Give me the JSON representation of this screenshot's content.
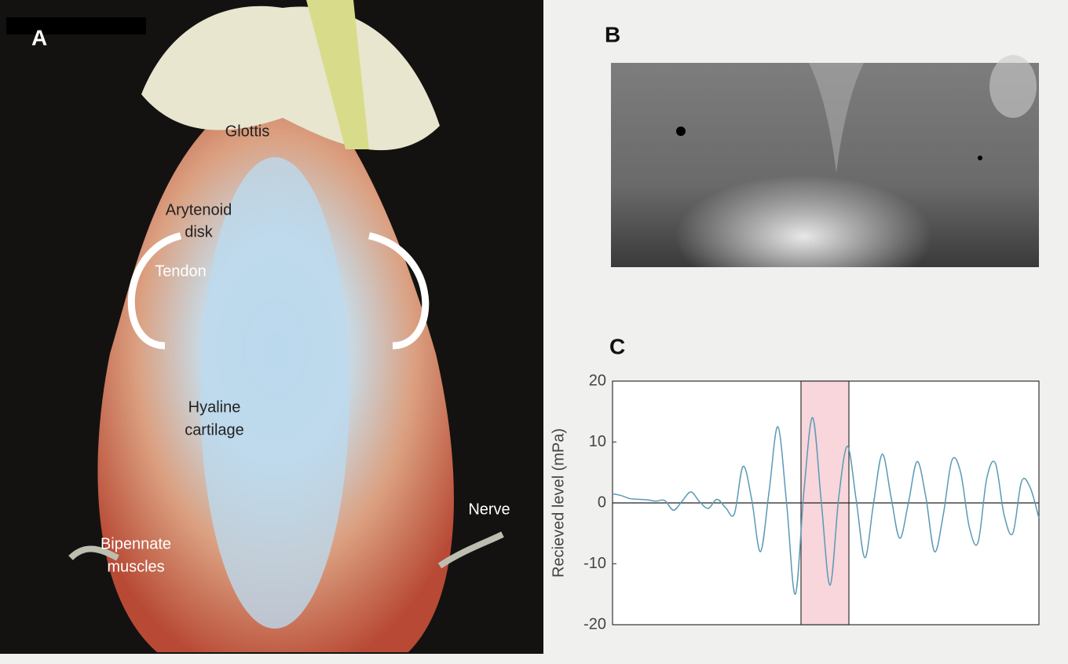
{
  "panels": {
    "a": {
      "label": "A",
      "annotations": {
        "glottis": [
          "Glottis"
        ],
        "arytenoid": [
          "Arytenoid",
          "disk"
        ],
        "tendon": [
          "Tendon"
        ],
        "hyaline": [
          "Hyaline",
          "cartilage"
        ],
        "nerve": [
          "Nerve"
        ],
        "bipennate": [
          "Bipennate",
          "muscles"
        ]
      }
    },
    "b": {
      "label": "B"
    },
    "c": {
      "label": "C"
    }
  },
  "chart_data": {
    "type": "line",
    "ylabel": "Recieved level (mPa)",
    "ylim": [
      -20,
      20
    ],
    "yticks": [
      -20,
      -10,
      0,
      10,
      20
    ],
    "series": [
      {
        "color": "#5a9ab5",
        "values": [
          1.5,
          1.2,
          0.7,
          0.6,
          0.5,
          0.3,
          0.4,
          -1.2,
          0.3,
          1.8,
          0.2,
          -0.9,
          0.6,
          -0.8,
          -1.8,
          6,
          0.5,
          -8,
          2,
          12.5,
          0,
          -15,
          2,
          14,
          0,
          -13.5,
          1,
          9.3,
          0.5,
          -9,
          0,
          8,
          1,
          -5.8,
          0,
          6.8,
          1,
          -8,
          -2,
          7,
          5,
          -4,
          -6.5,
          4,
          6.5,
          -2,
          -5,
          3.5,
          2.5,
          -2.5
        ]
      }
    ]
  }
}
